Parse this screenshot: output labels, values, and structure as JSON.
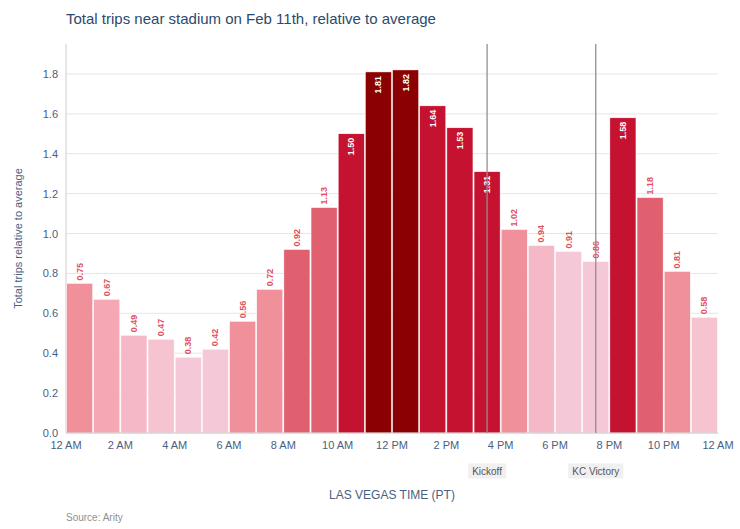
{
  "chart_data": {
    "type": "bar",
    "title": "Total trips near stadium on Feb 11th, relative to average",
    "x_label": "LAS VEGAS TIME (PT)",
    "y_label": "Total trips relative to average",
    "source": "Source: Arity",
    "x": [
      0.5,
      1.5,
      2.5,
      3.5,
      4.5,
      5.5,
      6.5,
      7.5,
      8.5,
      9.5,
      10.5,
      11.5,
      12.5,
      13.5,
      14.5,
      15.5,
      16.5,
      17.5,
      18.5,
      19.5,
      20.5,
      21.5,
      22.5,
      23.5
    ],
    "values": [
      0.75,
      0.67,
      0.49,
      0.47,
      0.38,
      0.42,
      0.56,
      0.72,
      0.92,
      1.13,
      1.5,
      1.81,
      1.82,
      1.64,
      1.53,
      1.31,
      1.02,
      0.94,
      0.91,
      0.86,
      1.58,
      1.18,
      0.81,
      0.58
    ],
    "value_labels": [
      "0.75",
      "0.67",
      "0.49",
      "0.47",
      "0.38",
      "0.42",
      "0.56",
      "0.72",
      "0.92",
      "1.13",
      "1.50",
      "1.81",
      "1.82",
      "1.64",
      "1.53",
      "1.31",
      "1.02",
      "0.94",
      "0.91",
      "0.86",
      "1.58",
      "1.18",
      "0.81",
      "0.58"
    ],
    "colors": [
      "#F0909A",
      "#F5A8B4",
      "#F5B8C6",
      "#F5C4D0",
      "#F5C8D8",
      "#F5C8D8",
      "#F0909A",
      "#F0909A",
      "#E06070",
      "#E06070",
      "#C41230",
      "#8B0000",
      "#8B0000",
      "#C41230",
      "#C41230",
      "#C41230",
      "#F0909A",
      "#F5B8C6",
      "#F5C8D8",
      "#F5C8D8",
      "#C41230",
      "#E06070",
      "#F0909A",
      "#F5C4D0"
    ],
    "data_labels": true,
    "xlim": [
      0,
      24
    ],
    "xticks": [
      {
        "value": 0,
        "label": "12 AM"
      },
      {
        "value": 2,
        "label": "2 AM"
      },
      {
        "value": 4,
        "label": "4 AM"
      },
      {
        "value": 6,
        "label": "6 AM"
      },
      {
        "value": 8,
        "label": "8 AM"
      },
      {
        "value": 10,
        "label": "10 AM"
      },
      {
        "value": 12,
        "label": "12 PM"
      },
      {
        "value": 14,
        "label": "2 PM"
      },
      {
        "value": 16,
        "label": "4 PM"
      },
      {
        "value": 18,
        "label": "6 PM"
      },
      {
        "value": 20,
        "label": "8 PM"
      },
      {
        "value": 22,
        "label": "10 PM"
      },
      {
        "value": 24,
        "label": "12 AM"
      }
    ],
    "ylim": [
      0,
      1.95
    ],
    "yticks": [
      {
        "value": 0.0,
        "label": "0.0"
      },
      0.2,
      0.4,
      0.6,
      0.8,
      {
        "value": 1.0,
        "label": "1.0"
      },
      1.2,
      1.4,
      1.6,
      1.8
    ],
    "grid": true,
    "annotations": [
      {
        "x": 15.5,
        "label": "Kickoff"
      },
      {
        "x": 19.5,
        "label": "KC Victory"
      }
    ]
  }
}
